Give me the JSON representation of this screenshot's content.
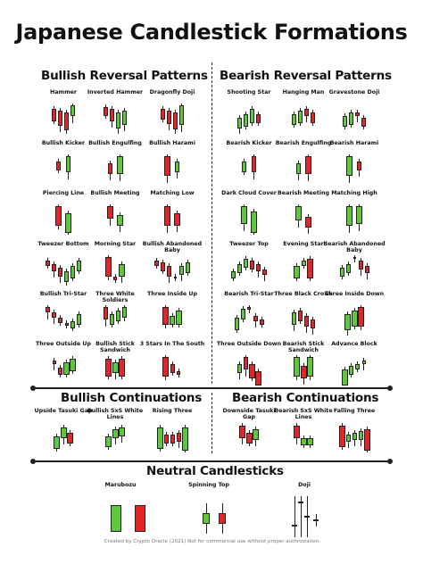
{
  "title": "Japanese Candlestick Formations",
  "sections": {
    "bullish_reversal": "Bullish Reversal Patterns",
    "bearish_reversal": "Bearish Reversal Patterns",
    "bullish_continuation": "Bullish Continuations",
    "bearish_continuation": "Bearish Continuations",
    "neutral": "Neutral Candlesticks"
  },
  "colors": {
    "bull": "#5ec83a",
    "bear": "#e0262a"
  },
  "bullish_reversal": [
    {
      "label": "Hammer",
      "c": [
        [
          "r",
          4,
          14,
          6,
          11
        ],
        [
          "r",
          4,
          17,
          8,
          14
        ],
        [
          "r",
          4,
          20,
          10,
          17
        ],
        [
          "g",
          4,
          12,
          2,
          24
        ]
      ]
    },
    {
      "label": "Inverted Hammer",
      "c": [
        [
          "r",
          4,
          10,
          4,
          12
        ],
        [
          "r",
          4,
          14,
          6,
          16
        ],
        [
          "g",
          4,
          18,
          10,
          22
        ],
        [
          "g",
          4,
          16,
          8,
          16
        ]
      ]
    },
    {
      "label": "Dragonfly Doji",
      "c": [
        [
          "r",
          4,
          12,
          6,
          10
        ],
        [
          "r",
          4,
          15,
          8,
          13
        ],
        [
          "r",
          4,
          19,
          10,
          17
        ],
        [
          "g",
          4,
          22,
          2,
          22
        ]
      ]
    },
    {
      "label": "Bullish Kicker",
      "c": [
        [
          "r",
          4,
          10,
          8,
          12
        ],
        [
          "g",
          4,
          18,
          2,
          16
        ]
      ]
    },
    {
      "label": "Bullish Engulfing",
      "c": [
        [
          "r",
          4,
          12,
          10,
          14
        ],
        [
          "g",
          6,
          20,
          2,
          14
        ]
      ]
    },
    {
      "label": "Bullish Harami",
      "c": [
        [
          "r",
          6,
          22,
          2,
          20
        ],
        [
          "g",
          4,
          12,
          8,
          16
        ]
      ]
    },
    {
      "label": "Piercing Line",
      "c": [
        [
          "r",
          6,
          22,
          2,
          12
        ],
        [
          "g",
          6,
          22,
          10,
          14
        ]
      ]
    },
    {
      "label": "Bullish Meeting",
      "c": [
        [
          "r",
          6,
          14,
          2,
          20
        ],
        [
          "g",
          6,
          12,
          12,
          24
        ]
      ]
    },
    {
      "label": "Matching Low",
      "c": [
        [
          "r",
          6,
          22,
          2,
          22
        ],
        [
          "r",
          6,
          14,
          10,
          22
        ]
      ]
    },
    {
      "label": "Tweezer Bottom",
      "c": [
        [
          "r",
          4,
          6,
          6,
          12
        ],
        [
          "r",
          4,
          8,
          10,
          14
        ],
        [
          "r",
          4,
          10,
          14,
          18
        ],
        [
          "g",
          4,
          12,
          18,
          14
        ],
        [
          "g",
          4,
          14,
          12,
          10
        ],
        [
          "g",
          4,
          12,
          6,
          8
        ]
      ]
    },
    {
      "label": "Morning Star",
      "c": [
        [
          "r",
          6,
          22,
          2,
          8
        ],
        [
          "r",
          3,
          4,
          24,
          4
        ],
        [
          "g",
          6,
          14,
          10,
          14
        ]
      ]
    },
    {
      "label": "Bullish Abandoned Baby",
      "c": [
        [
          "r",
          4,
          6,
          6,
          10
        ],
        [
          "r",
          4,
          10,
          8,
          12
        ],
        [
          "r",
          4,
          12,
          12,
          14
        ],
        [
          "g",
          2,
          2,
          24,
          2
        ],
        [
          "g",
          4,
          10,
          12,
          14
        ],
        [
          "g",
          4,
          12,
          8,
          10
        ]
      ]
    },
    {
      "label": "Bullish Tri-Star",
      "c": [
        [
          "r",
          4,
          6,
          2,
          14
        ],
        [
          "r",
          4,
          6,
          8,
          16
        ],
        [
          "r",
          4,
          6,
          14,
          10
        ],
        [
          "r",
          3,
          3,
          20,
          4
        ],
        [
          "g",
          4,
          8,
          18,
          8
        ],
        [
          "g",
          4,
          12,
          10,
          8
        ]
      ]
    },
    {
      "label": "Three White Soldiers",
      "c": [
        [
          "r",
          4,
          14,
          2,
          16
        ],
        [
          "g",
          4,
          12,
          10,
          10
        ],
        [
          "g",
          4,
          12,
          6,
          8
        ],
        [
          "g",
          4,
          12,
          2,
          6
        ]
      ]
    },
    {
      "label": "Three Inside Up",
      "c": [
        [
          "r",
          6,
          20,
          2,
          12
        ],
        [
          "g",
          5,
          10,
          12,
          10
        ],
        [
          "g",
          6,
          16,
          6,
          8
        ]
      ]
    },
    {
      "label": "Three Outside Up",
      "c": [
        [
          "r",
          3,
          4,
          6,
          18
        ],
        [
          "r",
          4,
          8,
          14,
          12
        ],
        [
          "g",
          6,
          14,
          8,
          10
        ],
        [
          "g",
          6,
          14,
          4,
          4
        ]
      ]
    },
    {
      "label": "Bullish Stick Sandwich",
      "c": [
        [
          "r",
          6,
          20,
          4,
          10
        ],
        [
          "g",
          6,
          12,
          8,
          14
        ],
        [
          "r",
          6,
          20,
          4,
          10
        ]
      ]
    },
    {
      "label": "3 Stars In The South",
      "c": [
        [
          "r",
          6,
          22,
          2,
          6
        ],
        [
          "r",
          4,
          10,
          10,
          10
        ],
        [
          "r",
          3,
          4,
          18,
          8
        ]
      ]
    }
  ],
  "bearish_reversal": [
    {
      "label": "Shooting Star",
      "c": [
        [
          "g",
          4,
          12,
          16,
          14
        ],
        [
          "g",
          4,
          14,
          12,
          10
        ],
        [
          "g",
          4,
          16,
          6,
          8
        ],
        [
          "r",
          4,
          10,
          12,
          8
        ]
      ]
    },
    {
      "label": "Hanging Man",
      "c": [
        [
          "g",
          4,
          12,
          12,
          12
        ],
        [
          "g",
          4,
          14,
          8,
          10
        ],
        [
          "r",
          4,
          8,
          6,
          16
        ],
        [
          "r",
          4,
          12,
          10,
          12
        ]
      ]
    },
    {
      "label": "Gravestone Doji",
      "c": [
        [
          "g",
          4,
          12,
          14,
          12
        ],
        [
          "g",
          4,
          14,
          10,
          10
        ],
        [
          "r",
          4,
          4,
          10,
          18
        ],
        [
          "r",
          4,
          10,
          16,
          10
        ]
      ]
    },
    {
      "label": "Bearish Kicker",
      "c": [
        [
          "g",
          4,
          12,
          8,
          12
        ],
        [
          "r",
          4,
          18,
          2,
          16
        ]
      ]
    },
    {
      "label": "Bearish Engulfing",
      "c": [
        [
          "g",
          4,
          12,
          10,
          14
        ],
        [
          "r",
          6,
          20,
          2,
          14
        ]
      ]
    },
    {
      "label": "Bearish Harami",
      "c": [
        [
          "g",
          6,
          22,
          2,
          20
        ],
        [
          "r",
          4,
          10,
          8,
          16
        ]
      ]
    },
    {
      "label": "Dark Cloud Cover",
      "c": [
        [
          "g",
          6,
          20,
          2,
          14
        ],
        [
          "g",
          6,
          24,
          8,
          6
        ]
      ]
    },
    {
      "label": "Bearish Meeting",
      "c": [
        [
          "g",
          6,
          16,
          2,
          16
        ],
        [
          "r",
          6,
          12,
          14,
          24
        ]
      ]
    },
    {
      "label": "Matching High",
      "c": [
        [
          "g",
          6,
          22,
          2,
          22
        ],
        [
          "g",
          6,
          20,
          2,
          22
        ]
      ]
    },
    {
      "label": "Tweezer Top",
      "c": [
        [
          "g",
          4,
          8,
          18,
          10
        ],
        [
          "g",
          4,
          10,
          10,
          12
        ],
        [
          "g",
          4,
          10,
          4,
          10
        ],
        [
          "r",
          4,
          10,
          6,
          12
        ],
        [
          "r",
          4,
          8,
          10,
          14
        ],
        [
          "r",
          4,
          6,
          16,
          18
        ]
      ]
    },
    {
      "label": "Evening Star",
      "c": [
        [
          "g",
          6,
          14,
          12,
          10
        ],
        [
          "g",
          4,
          6,
          6,
          10
        ],
        [
          "r",
          6,
          22,
          4,
          8
        ]
      ]
    },
    {
      "label": "Bearish Abandoned Baby",
      "c": [
        [
          "g",
          4,
          10,
          14,
          12
        ],
        [
          "g",
          4,
          10,
          10,
          10
        ],
        [
          "g",
          2,
          2,
          2,
          4
        ],
        [
          "r",
          4,
          10,
          6,
          16
        ],
        [
          "r",
          4,
          8,
          12,
          18
        ]
      ]
    },
    {
      "label": "Bearish Tri-Star",
      "c": [
        [
          "g",
          4,
          14,
          14,
          10
        ],
        [
          "g",
          4,
          12,
          4,
          10
        ],
        [
          "r",
          3,
          3,
          2,
          4
        ],
        [
          "r",
          4,
          6,
          12,
          14
        ],
        [
          "r",
          4,
          6,
          16,
          10
        ]
      ]
    },
    {
      "label": "Three Black Crows",
      "c": [
        [
          "g",
          4,
          14,
          8,
          14
        ],
        [
          "r",
          4,
          12,
          6,
          10
        ],
        [
          "r",
          4,
          12,
          12,
          14
        ],
        [
          "r",
          4,
          10,
          16,
          18
        ]
      ]
    },
    {
      "label": "Three Inside Down",
      "c": [
        [
          "g",
          6,
          18,
          10,
          14
        ],
        [
          "g",
          6,
          18,
          6,
          10
        ],
        [
          "r",
          6,
          22,
          2,
          6
        ]
      ]
    },
    {
      "label": "Three Outside Down",
      "c": [
        [
          "g",
          4,
          10,
          10,
          14
        ],
        [
          "r",
          4,
          14,
          2,
          18
        ],
        [
          "r",
          6,
          16,
          10,
          8
        ],
        [
          "r",
          6,
          16,
          18,
          4
        ]
      ]
    },
    {
      "label": "Bearish Stick Sandwich",
      "c": [
        [
          "g",
          6,
          22,
          2,
          8
        ],
        [
          "r",
          6,
          14,
          12,
          14
        ],
        [
          "g",
          6,
          22,
          2,
          8
        ]
      ]
    },
    {
      "label": "Advance Block",
      "c": [
        [
          "g",
          6,
          18,
          16,
          6
        ],
        [
          "g",
          4,
          10,
          12,
          10
        ],
        [
          "g",
          4,
          6,
          10,
          12
        ],
        [
          "g",
          3,
          4,
          6,
          14
        ]
      ]
    }
  ],
  "bullish_continuation": [
    {
      "label": "Upside Tasuki Gap",
      "c": [
        [
          "g",
          6,
          14,
          16,
          4
        ],
        [
          "g",
          6,
          12,
          6,
          14
        ],
        [
          "r",
          6,
          12,
          12,
          8
        ]
      ]
    },
    {
      "label": "Bullish SxS White Lines",
      "c": [
        [
          "g",
          6,
          12,
          16,
          8
        ],
        [
          "g",
          6,
          10,
          8,
          16
        ],
        [
          "g",
          6,
          10,
          6,
          16
        ]
      ]
    },
    {
      "label": "Rising Three",
      "c": [
        [
          "g",
          6,
          24,
          6,
          4
        ],
        [
          "r",
          4,
          10,
          14,
          10
        ],
        [
          "r",
          4,
          10,
          14,
          12
        ],
        [
          "r",
          4,
          10,
          12,
          14
        ],
        [
          "g",
          6,
          26,
          6,
          2
        ]
      ]
    }
  ],
  "bearish_continuation": [
    {
      "label": "Downside Tasuki Gap",
      "c": [
        [
          "r",
          6,
          14,
          4,
          16
        ],
        [
          "r",
          6,
          12,
          12,
          10
        ],
        [
          "g",
          6,
          12,
          8,
          14
        ]
      ]
    },
    {
      "label": "Bearish SxS White Lines",
      "c": [
        [
          "r",
          6,
          14,
          4,
          16
        ],
        [
          "g",
          6,
          8,
          18,
          8
        ],
        [
          "g",
          6,
          8,
          18,
          8
        ]
      ]
    },
    {
      "label": "Falling Three",
      "c": [
        [
          "r",
          6,
          24,
          4,
          6
        ],
        [
          "g",
          4,
          8,
          14,
          14
        ],
        [
          "g",
          4,
          8,
          12,
          16
        ],
        [
          "g",
          4,
          10,
          10,
          14
        ],
        [
          "r",
          6,
          24,
          8,
          2
        ]
      ]
    }
  ],
  "neutral": [
    {
      "label": "Marubozu"
    },
    {
      "label": "Spinning Top"
    },
    {
      "label": "Doji"
    }
  ],
  "footer": "Created by Crypto Oracle (2021) Not for commercial use without proper authroization"
}
